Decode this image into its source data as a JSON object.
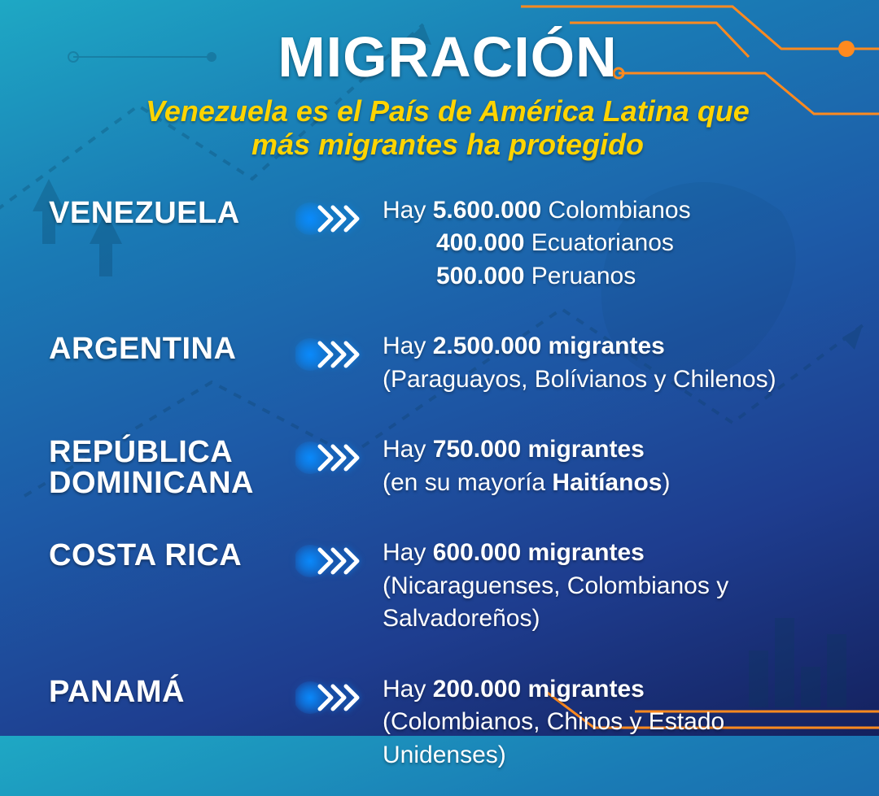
{
  "colors": {
    "title": "#ffffff",
    "subtitle": "#ffd400",
    "text": "#ffffff",
    "accent_orange": "#ff8a1f",
    "chevron_glow": "#0a8cff",
    "chevron_stroke": "#ffffff",
    "bg_top": "#1ea8c4",
    "bg_bottom": "#14215e"
  },
  "title": "MIGRACIÓN",
  "subtitle_line1": "Venezuela es el País de América Latina que",
  "subtitle_line2": "más migrantes ha protegido",
  "rows": [
    {
      "country": "VENEZUELA",
      "lines": [
        {
          "pre": "Hay ",
          "bold": "5.600.000",
          "post": " Colombianos"
        },
        {
          "pre": "",
          "bold": "400.000",
          "post": " Ecuatorianos",
          "indent": true
        },
        {
          "pre": "",
          "bold": "500.000",
          "post": " Peruanos",
          "indent": true
        }
      ]
    },
    {
      "country": "ARGENTINA",
      "lines": [
        {
          "pre": "Hay ",
          "bold": "2.500.000 migrantes",
          "post": ""
        },
        {
          "sub": "(Paraguayos, Bolívianos y Chilenos)"
        }
      ]
    },
    {
      "country": "REPÚBLICA DOMINICANA",
      "lines": [
        {
          "pre": "Hay ",
          "bold": "750.000 migrantes",
          "post": ""
        },
        {
          "subparts": [
            {
              "t": "(en su mayoría ",
              "w": "light"
            },
            {
              "t": "Haitíanos",
              "w": "bold"
            },
            {
              "t": ")",
              "w": "light"
            }
          ]
        }
      ]
    },
    {
      "country": "COSTA RICA",
      "lines": [
        {
          "pre": "Hay ",
          "bold": "600.000 migrantes",
          "post": ""
        },
        {
          "sub": "(Nicaraguenses, Colombianos y Salvadoreños)"
        }
      ]
    },
    {
      "country": "PANAMÁ",
      "lines": [
        {
          "pre": "Hay ",
          "bold": "200.000 migrantes",
          "post": ""
        },
        {
          "sub": "(Colombianos, Chinos y Estado Unidenses)"
        }
      ]
    }
  ]
}
